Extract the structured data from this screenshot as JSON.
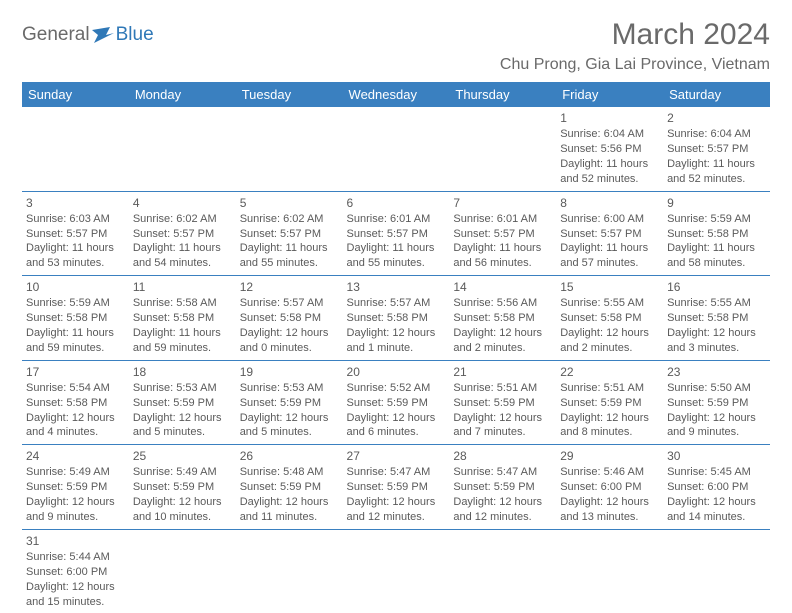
{
  "logo": {
    "general": "General",
    "blue": "Blue"
  },
  "title": "March 2024",
  "location": "Chu Prong, Gia Lai Province, Vietnam",
  "colors": {
    "header_bg": "#3a80c0",
    "header_text": "#ffffff",
    "cell_border": "#3a80c0",
    "text": "#5a5a5a",
    "logo_blue": "#2f78b7",
    "background": "#ffffff"
  },
  "day_headers": [
    "Sunday",
    "Monday",
    "Tuesday",
    "Wednesday",
    "Thursday",
    "Friday",
    "Saturday"
  ],
  "weeks": [
    [
      null,
      null,
      null,
      null,
      null,
      {
        "n": "1",
        "sr": "Sunrise: 6:04 AM",
        "ss": "Sunset: 5:56 PM",
        "dl1": "Daylight: 11 hours",
        "dl2": "and 52 minutes."
      },
      {
        "n": "2",
        "sr": "Sunrise: 6:04 AM",
        "ss": "Sunset: 5:57 PM",
        "dl1": "Daylight: 11 hours",
        "dl2": "and 52 minutes."
      }
    ],
    [
      {
        "n": "3",
        "sr": "Sunrise: 6:03 AM",
        "ss": "Sunset: 5:57 PM",
        "dl1": "Daylight: 11 hours",
        "dl2": "and 53 minutes."
      },
      {
        "n": "4",
        "sr": "Sunrise: 6:02 AM",
        "ss": "Sunset: 5:57 PM",
        "dl1": "Daylight: 11 hours",
        "dl2": "and 54 minutes."
      },
      {
        "n": "5",
        "sr": "Sunrise: 6:02 AM",
        "ss": "Sunset: 5:57 PM",
        "dl1": "Daylight: 11 hours",
        "dl2": "and 55 minutes."
      },
      {
        "n": "6",
        "sr": "Sunrise: 6:01 AM",
        "ss": "Sunset: 5:57 PM",
        "dl1": "Daylight: 11 hours",
        "dl2": "and 55 minutes."
      },
      {
        "n": "7",
        "sr": "Sunrise: 6:01 AM",
        "ss": "Sunset: 5:57 PM",
        "dl1": "Daylight: 11 hours",
        "dl2": "and 56 minutes."
      },
      {
        "n": "8",
        "sr": "Sunrise: 6:00 AM",
        "ss": "Sunset: 5:57 PM",
        "dl1": "Daylight: 11 hours",
        "dl2": "and 57 minutes."
      },
      {
        "n": "9",
        "sr": "Sunrise: 5:59 AM",
        "ss": "Sunset: 5:58 PM",
        "dl1": "Daylight: 11 hours",
        "dl2": "and 58 minutes."
      }
    ],
    [
      {
        "n": "10",
        "sr": "Sunrise: 5:59 AM",
        "ss": "Sunset: 5:58 PM",
        "dl1": "Daylight: 11 hours",
        "dl2": "and 59 minutes."
      },
      {
        "n": "11",
        "sr": "Sunrise: 5:58 AM",
        "ss": "Sunset: 5:58 PM",
        "dl1": "Daylight: 11 hours",
        "dl2": "and 59 minutes."
      },
      {
        "n": "12",
        "sr": "Sunrise: 5:57 AM",
        "ss": "Sunset: 5:58 PM",
        "dl1": "Daylight: 12 hours",
        "dl2": "and 0 minutes."
      },
      {
        "n": "13",
        "sr": "Sunrise: 5:57 AM",
        "ss": "Sunset: 5:58 PM",
        "dl1": "Daylight: 12 hours",
        "dl2": "and 1 minute."
      },
      {
        "n": "14",
        "sr": "Sunrise: 5:56 AM",
        "ss": "Sunset: 5:58 PM",
        "dl1": "Daylight: 12 hours",
        "dl2": "and 2 minutes."
      },
      {
        "n": "15",
        "sr": "Sunrise: 5:55 AM",
        "ss": "Sunset: 5:58 PM",
        "dl1": "Daylight: 12 hours",
        "dl2": "and 2 minutes."
      },
      {
        "n": "16",
        "sr": "Sunrise: 5:55 AM",
        "ss": "Sunset: 5:58 PM",
        "dl1": "Daylight: 12 hours",
        "dl2": "and 3 minutes."
      }
    ],
    [
      {
        "n": "17",
        "sr": "Sunrise: 5:54 AM",
        "ss": "Sunset: 5:58 PM",
        "dl1": "Daylight: 12 hours",
        "dl2": "and 4 minutes."
      },
      {
        "n": "18",
        "sr": "Sunrise: 5:53 AM",
        "ss": "Sunset: 5:59 PM",
        "dl1": "Daylight: 12 hours",
        "dl2": "and 5 minutes."
      },
      {
        "n": "19",
        "sr": "Sunrise: 5:53 AM",
        "ss": "Sunset: 5:59 PM",
        "dl1": "Daylight: 12 hours",
        "dl2": "and 5 minutes."
      },
      {
        "n": "20",
        "sr": "Sunrise: 5:52 AM",
        "ss": "Sunset: 5:59 PM",
        "dl1": "Daylight: 12 hours",
        "dl2": "and 6 minutes."
      },
      {
        "n": "21",
        "sr": "Sunrise: 5:51 AM",
        "ss": "Sunset: 5:59 PM",
        "dl1": "Daylight: 12 hours",
        "dl2": "and 7 minutes."
      },
      {
        "n": "22",
        "sr": "Sunrise: 5:51 AM",
        "ss": "Sunset: 5:59 PM",
        "dl1": "Daylight: 12 hours",
        "dl2": "and 8 minutes."
      },
      {
        "n": "23",
        "sr": "Sunrise: 5:50 AM",
        "ss": "Sunset: 5:59 PM",
        "dl1": "Daylight: 12 hours",
        "dl2": "and 9 minutes."
      }
    ],
    [
      {
        "n": "24",
        "sr": "Sunrise: 5:49 AM",
        "ss": "Sunset: 5:59 PM",
        "dl1": "Daylight: 12 hours",
        "dl2": "and 9 minutes."
      },
      {
        "n": "25",
        "sr": "Sunrise: 5:49 AM",
        "ss": "Sunset: 5:59 PM",
        "dl1": "Daylight: 12 hours",
        "dl2": "and 10 minutes."
      },
      {
        "n": "26",
        "sr": "Sunrise: 5:48 AM",
        "ss": "Sunset: 5:59 PM",
        "dl1": "Daylight: 12 hours",
        "dl2": "and 11 minutes."
      },
      {
        "n": "27",
        "sr": "Sunrise: 5:47 AM",
        "ss": "Sunset: 5:59 PM",
        "dl1": "Daylight: 12 hours",
        "dl2": "and 12 minutes."
      },
      {
        "n": "28",
        "sr": "Sunrise: 5:47 AM",
        "ss": "Sunset: 5:59 PM",
        "dl1": "Daylight: 12 hours",
        "dl2": "and 12 minutes."
      },
      {
        "n": "29",
        "sr": "Sunrise: 5:46 AM",
        "ss": "Sunset: 6:00 PM",
        "dl1": "Daylight: 12 hours",
        "dl2": "and 13 minutes."
      },
      {
        "n": "30",
        "sr": "Sunrise: 5:45 AM",
        "ss": "Sunset: 6:00 PM",
        "dl1": "Daylight: 12 hours",
        "dl2": "and 14 minutes."
      }
    ],
    [
      {
        "n": "31",
        "sr": "Sunrise: 5:44 AM",
        "ss": "Sunset: 6:00 PM",
        "dl1": "Daylight: 12 hours",
        "dl2": "and 15 minutes."
      },
      null,
      null,
      null,
      null,
      null,
      null
    ]
  ]
}
